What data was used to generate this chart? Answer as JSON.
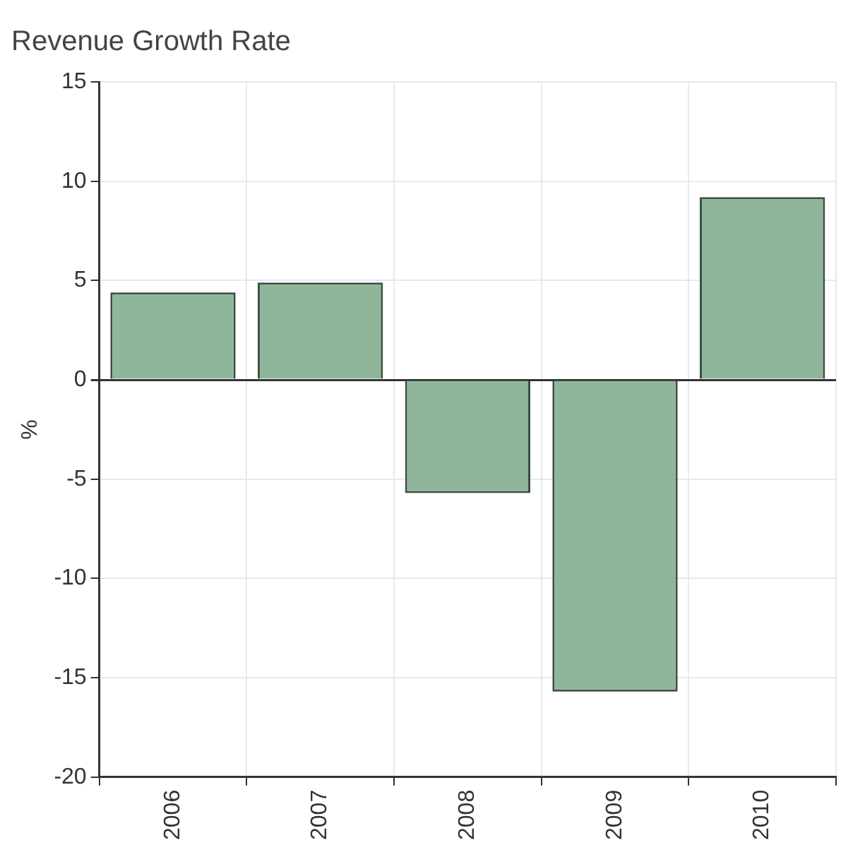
{
  "chart_data": {
    "type": "bar",
    "title": "Revenue Growth Rate",
    "ylabel": "%",
    "categories": [
      "2006",
      "2007",
      "2008",
      "2009",
      "2010"
    ],
    "values": [
      4.4,
      4.9,
      -5.7,
      -15.7,
      9.2
    ],
    "color": "#8fb59a",
    "ylim": [
      -20,
      15
    ],
    "yticks": [
      -20,
      -15,
      -10,
      -5,
      0,
      5,
      10,
      15
    ],
    "grid": true,
    "legend": false
  }
}
